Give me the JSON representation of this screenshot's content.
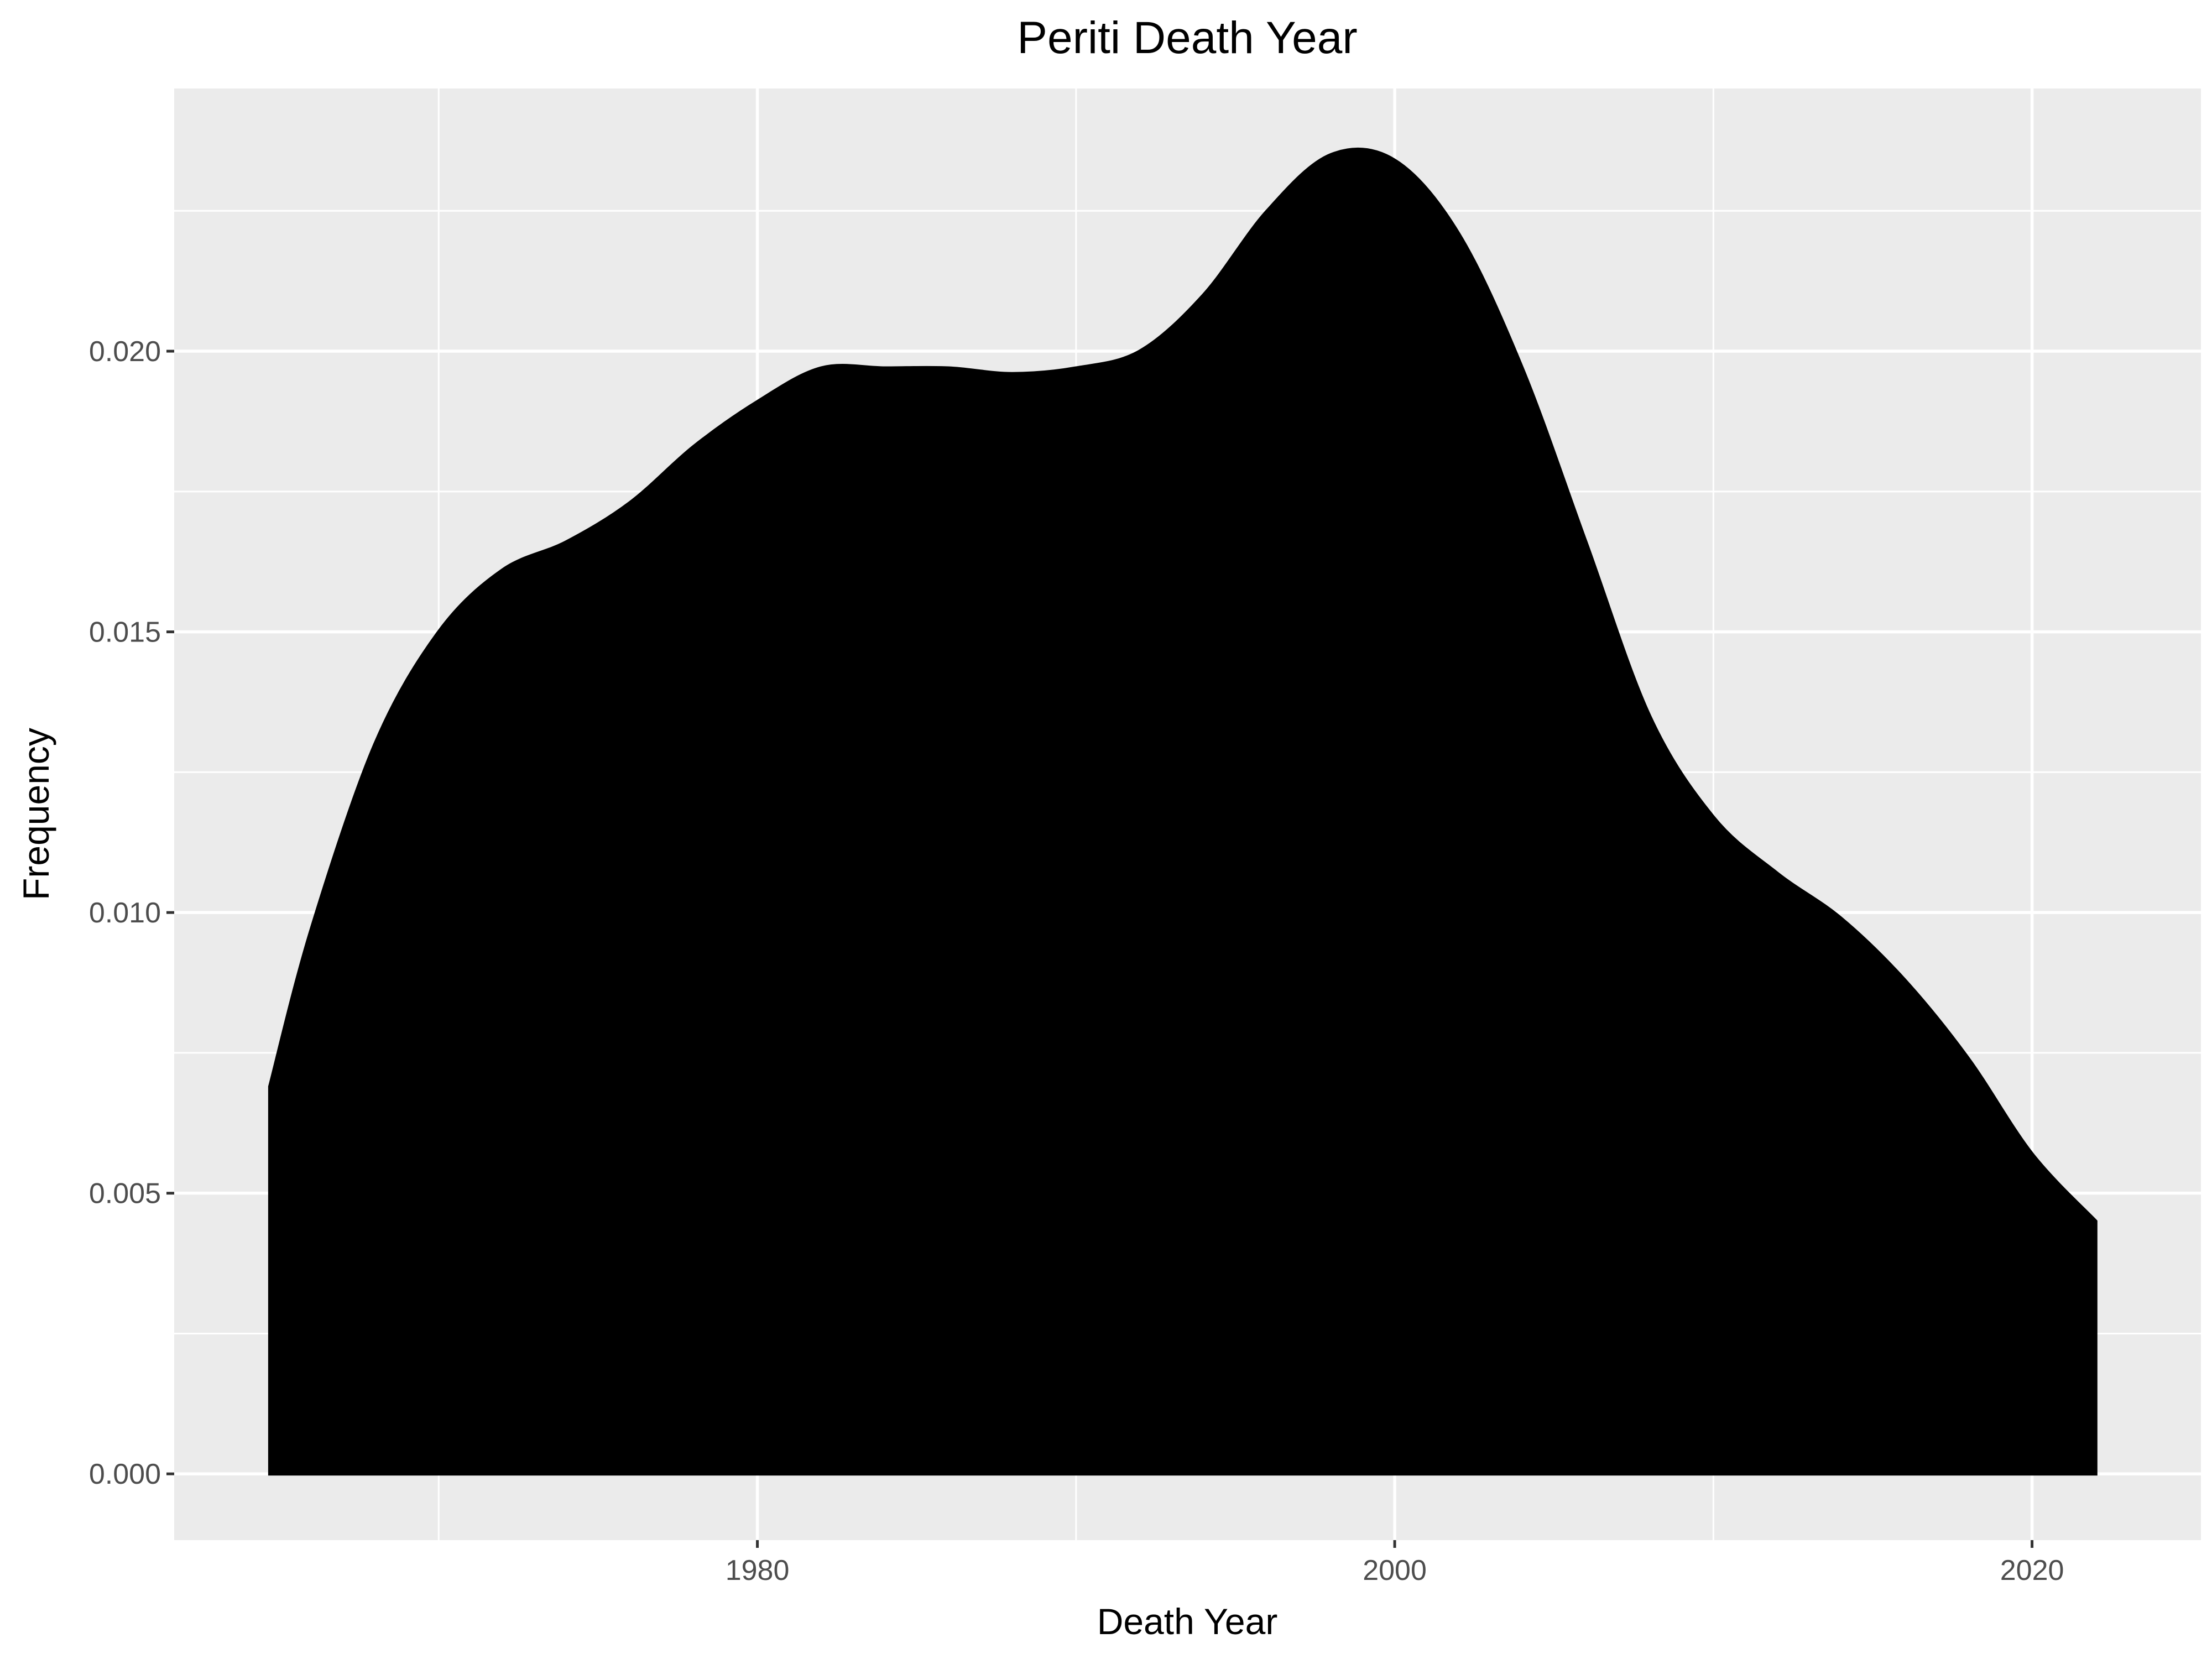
{
  "chart_data": {
    "type": "area",
    "title": "Periti Death Year",
    "xlabel": "Death Year",
    "ylabel": "Frequency",
    "xlim": [
      1961.7,
      2025.3
    ],
    "ylim": [
      -0.00118,
      0.02468
    ],
    "x_ticks": [
      1980,
      2000,
      2020
    ],
    "x_minor_ticks": [
      1970,
      1990,
      2010
    ],
    "y_ticks": [
      0.0,
      0.005,
      0.01,
      0.015,
      0.02
    ],
    "y_tick_labels": [
      "0.000",
      "0.005",
      "0.010",
      "0.015",
      "0.020"
    ],
    "y_minor_ticks": [
      0.0025,
      0.0075,
      0.0125,
      0.0175,
      0.0225
    ],
    "grid": true,
    "legend": "none",
    "colors": {
      "fill": "#000000",
      "panel": "#ebebeb",
      "grid": "#ffffff",
      "tick_text": "#4d4d4d",
      "text": "#000000"
    },
    "series": [
      {
        "x": [
          1964.7,
          1966,
          1968,
          1970,
          1972,
          1974,
          1976,
          1978,
          1980,
          1982,
          1984,
          1986,
          1988,
          1990,
          1992,
          1994,
          1996,
          1998,
          2000,
          2002,
          2004,
          2006,
          2008,
          2010,
          2012,
          2014,
          2016,
          2018,
          2020,
          2022
        ],
        "y": [
          0.0069,
          0.0097,
          0.013,
          0.015,
          0.0161,
          0.0166,
          0.0173,
          0.0183,
          0.0191,
          0.0197,
          0.0197,
          0.0197,
          0.0196,
          0.0197,
          0.02,
          0.021,
          0.0225,
          0.0235,
          0.0234,
          0.0221,
          0.0197,
          0.0166,
          0.0135,
          0.0117,
          0.0107,
          0.0099,
          0.0088,
          0.0074,
          0.0057,
          0.0045
        ]
      }
    ]
  }
}
